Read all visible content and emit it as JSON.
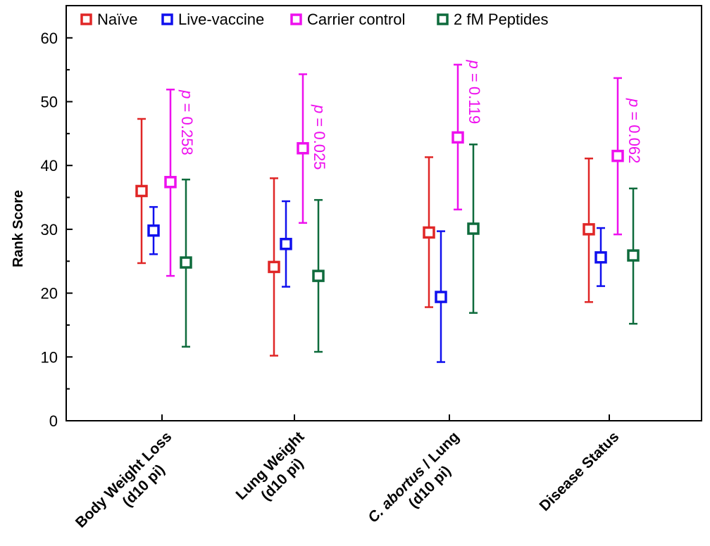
{
  "chart_data": {
    "type": "scatter",
    "title": "",
    "xlabel": "",
    "ylabel": "Rank Score",
    "ylim": [
      0,
      60
    ],
    "yticks": [
      0,
      10,
      20,
      30,
      40,
      50,
      60
    ],
    "grid": false,
    "legend_position": "top",
    "categories": [
      [
        "Body Weight Loss",
        "(d10 pi)"
      ],
      [
        "Lung Weight",
        "(d10 pi)"
      ],
      [
        "C. abortus / Lung",
        "(d10 pi)"
      ],
      [
        "Disease Status"
      ]
    ],
    "series": [
      {
        "name": "Naïve",
        "color": "#e02626",
        "values": [
          36.0,
          24.1,
          29.5,
          30.0
        ],
        "err_low": [
          24.7,
          10.2,
          17.8,
          18.6
        ],
        "err_high": [
          47.3,
          38.0,
          41.3,
          41.1
        ]
      },
      {
        "name": "Live-vaccine",
        "color": "#1010ee",
        "values": [
          29.8,
          27.7,
          19.4,
          25.6
        ],
        "err_low": [
          26.1,
          21.0,
          9.2,
          21.1
        ],
        "err_high": [
          33.5,
          34.4,
          29.7,
          30.2
        ]
      },
      {
        "name": "Carrier control",
        "color": "#ee10ee",
        "values": [
          37.4,
          42.7,
          44.4,
          41.5
        ],
        "err_low": [
          22.7,
          31.0,
          33.1,
          29.2
        ],
        "err_high": [
          51.9,
          54.3,
          55.8,
          53.7
        ]
      },
      {
        "name": "2 fM Peptides",
        "color": "#0e6b3c",
        "values": [
          24.8,
          22.7,
          30.1,
          25.9
        ],
        "err_low": [
          11.6,
          10.8,
          16.9,
          15.2
        ],
        "err_high": [
          37.8,
          34.6,
          43.3,
          36.4
        ]
      }
    ],
    "annotations": [
      {
        "category_index": 0,
        "p": "p",
        "text": " = 0.258",
        "y_start": 51.8
      },
      {
        "category_index": 1,
        "p": "p",
        "text": " = 0.025",
        "y_start": 49.5
      },
      {
        "category_index": 2,
        "p": "p",
        "text": " = 0.119",
        "y_start": 56.5
      },
      {
        "category_index": 3,
        "p": "p",
        "text": " = 0.062",
        "y_start": 50.5
      }
    ]
  }
}
